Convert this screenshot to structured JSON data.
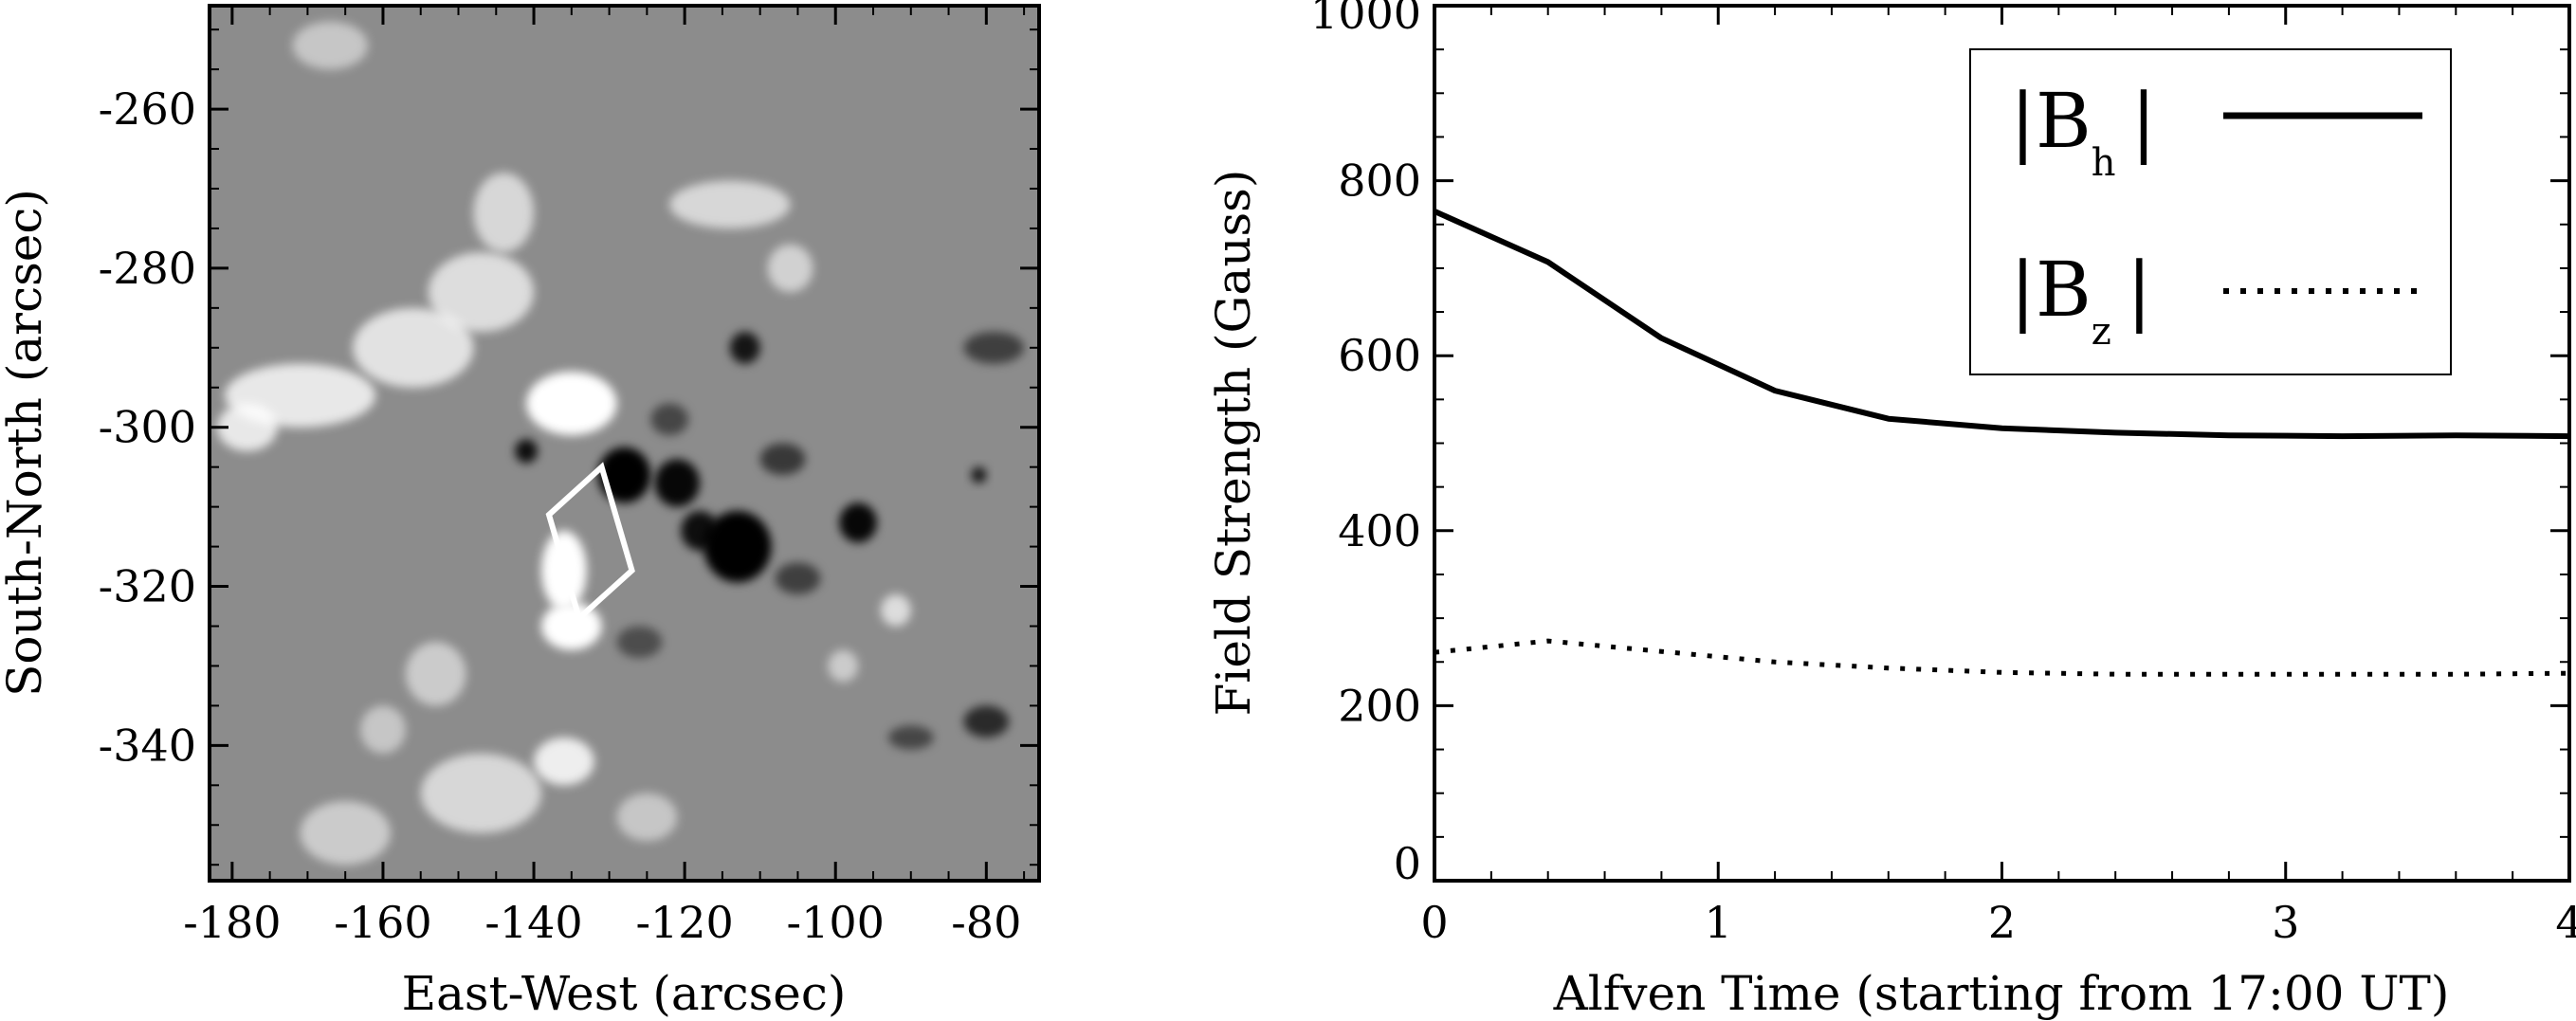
{
  "chart_data": [
    {
      "type": "heatmap",
      "title": "",
      "xlabel": "East-West (arcsec)",
      "ylabel": "South-North (arcsec)",
      "xlim": [
        -183,
        -73
      ],
      "ylim": [
        -357,
        -247
      ],
      "xticks": [
        -180,
        -160,
        -140,
        -120,
        -100,
        -80
      ],
      "yticks": [
        -260,
        -280,
        -300,
        -320,
        -340
      ],
      "colormap": "grayscale",
      "colors": {
        "background": "#8c8c8c",
        "positive": "#ffffff",
        "negative": "#000000",
        "box": "#ffffff"
      },
      "positive_regions": [
        {
          "x": -135,
          "y": -297,
          "rx": 6,
          "ry": 4,
          "strength": 1.0
        },
        {
          "x": -136,
          "y": -318,
          "rx": 3,
          "ry": 5,
          "strength": 1.0
        },
        {
          "x": -135,
          "y": -325,
          "rx": 4,
          "ry": 3,
          "strength": 1.0
        },
        {
          "x": -171,
          "y": -296,
          "rx": 10,
          "ry": 4,
          "strength": 0.8
        },
        {
          "x": -156,
          "y": -290,
          "rx": 8,
          "ry": 5,
          "strength": 0.75
        },
        {
          "x": -147,
          "y": -283,
          "rx": 7,
          "ry": 5,
          "strength": 0.7
        },
        {
          "x": -144,
          "y": -273,
          "rx": 4,
          "ry": 5,
          "strength": 0.65
        },
        {
          "x": -178,
          "y": -300,
          "rx": 4,
          "ry": 3,
          "strength": 0.8
        },
        {
          "x": -114,
          "y": -272,
          "rx": 8,
          "ry": 3,
          "strength": 0.65
        },
        {
          "x": -106,
          "y": -280,
          "rx": 3,
          "ry": 3,
          "strength": 0.6
        },
        {
          "x": -167,
          "y": -252,
          "rx": 5,
          "ry": 3,
          "strength": 0.5
        },
        {
          "x": -153,
          "y": -331,
          "rx": 4,
          "ry": 4,
          "strength": 0.55
        },
        {
          "x": -147,
          "y": -346,
          "rx": 8,
          "ry": 5,
          "strength": 0.65
        },
        {
          "x": -136,
          "y": -342,
          "rx": 4,
          "ry": 3,
          "strength": 0.85
        },
        {
          "x": -165,
          "y": -351,
          "rx": 6,
          "ry": 4,
          "strength": 0.55
        },
        {
          "x": -160,
          "y": -338,
          "rx": 3,
          "ry": 3,
          "strength": 0.5
        },
        {
          "x": -125,
          "y": -349,
          "rx": 4,
          "ry": 3,
          "strength": 0.5
        },
        {
          "x": -92,
          "y": -323,
          "rx": 2,
          "ry": 2,
          "strength": 0.7
        },
        {
          "x": -99,
          "y": -330,
          "rx": 2,
          "ry": 2,
          "strength": 0.55
        }
      ],
      "negative_regions": [
        {
          "x": -128,
          "y": -306,
          "rx": 3.5,
          "ry": 3.5,
          "strength": 1.0
        },
        {
          "x": -121,
          "y": -307,
          "rx": 3,
          "ry": 3,
          "strength": 0.95
        },
        {
          "x": -113,
          "y": -315,
          "rx": 4.5,
          "ry": 4.5,
          "strength": 1.0
        },
        {
          "x": -118,
          "y": -313,
          "rx": 2.5,
          "ry": 2.5,
          "strength": 0.9
        },
        {
          "x": -97,
          "y": -312,
          "rx": 2.5,
          "ry": 2.5,
          "strength": 0.95
        },
        {
          "x": -141,
          "y": -303,
          "rx": 1.5,
          "ry": 1.5,
          "strength": 0.9
        },
        {
          "x": -112,
          "y": -290,
          "rx": 2,
          "ry": 2,
          "strength": 0.85
        },
        {
          "x": -107,
          "y": -304,
          "rx": 3,
          "ry": 2,
          "strength": 0.6
        },
        {
          "x": -105,
          "y": -319,
          "rx": 3,
          "ry": 2,
          "strength": 0.55
        },
        {
          "x": -80,
          "y": -337,
          "rx": 3,
          "ry": 2,
          "strength": 0.7
        },
        {
          "x": -81,
          "y": -306,
          "rx": 1,
          "ry": 1,
          "strength": 0.85
        },
        {
          "x": -79,
          "y": -290,
          "rx": 4,
          "ry": 2,
          "strength": 0.55
        },
        {
          "x": -90,
          "y": -339,
          "rx": 3,
          "ry": 1.5,
          "strength": 0.5
        },
        {
          "x": -126,
          "y": -327,
          "rx": 3,
          "ry": 2,
          "strength": 0.45
        },
        {
          "x": -122,
          "y": -299,
          "rx": 2.5,
          "ry": 2,
          "strength": 0.5
        }
      ],
      "box": {
        "corners": [
          [
            -138,
            -311
          ],
          [
            -131,
            -305
          ],
          [
            -127,
            -318
          ],
          [
            -134,
            -324
          ]
        ]
      }
    },
    {
      "type": "line",
      "title": "",
      "xlabel": "Alfven Time (starting from 17:00 UT)",
      "ylabel": "Field Strength (Gauss)",
      "xlim": [
        0,
        4
      ],
      "ylim": [
        0,
        1000
      ],
      "xticks": [
        0,
        1,
        2,
        3,
        4
      ],
      "yticks": [
        0,
        200,
        400,
        600,
        800,
        1000
      ],
      "legend_position": "top-right",
      "series": [
        {
          "name": "|B_h|",
          "style": "solid",
          "color": "#000000",
          "x": [
            0,
            0.4,
            0.8,
            1.2,
            1.6,
            2.0,
            2.4,
            2.8,
            3.2,
            3.6,
            4.0
          ],
          "y": [
            765,
            707,
            620,
            560,
            528,
            517,
            512,
            509,
            508,
            509,
            508
          ]
        },
        {
          "name": "|B_z|",
          "style": "dotted",
          "color": "#000000",
          "x": [
            0,
            0.4,
            0.8,
            1.2,
            1.6,
            2.0,
            2.4,
            2.8,
            3.2,
            3.6,
            4.0
          ],
          "y": [
            261,
            274,
            262,
            250,
            243,
            238,
            236,
            236,
            236,
            236,
            237
          ]
        }
      ],
      "legend": [
        {
          "main": "|B",
          "sub": "h",
          "close": "|",
          "style": "solid"
        },
        {
          "main": "|B",
          "sub": "z",
          "close": "|",
          "style": "dotted"
        }
      ]
    }
  ]
}
